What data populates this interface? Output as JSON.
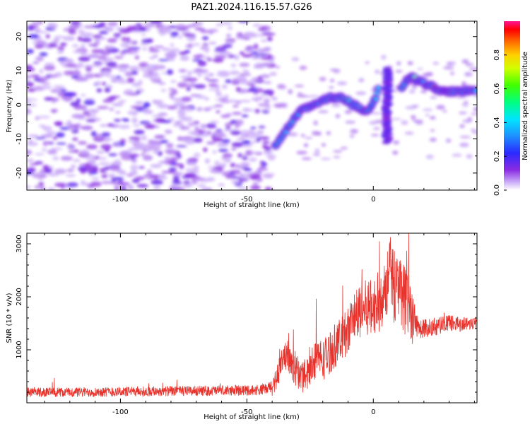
{
  "title": "PAZ1.2024.116.15.57.G26",
  "chart_data": [
    {
      "type": "heatmap",
      "xlabel": "Height of straight line (km)",
      "ylabel": "Frequency (Hz)",
      "xlim": [
        -137,
        41
      ],
      "ylim": [
        -25,
        24.5
      ],
      "xticks": [
        -100,
        -50,
        0
      ],
      "xtick_labels": [
        "-100",
        "-50",
        "0"
      ],
      "yticks": [
        -20,
        -10,
        0,
        10,
        20
      ],
      "ytick_labels": [
        "-20",
        "-10",
        "0",
        "10",
        "20"
      ],
      "noise_region_x": [
        -137,
        -40
      ],
      "ridge": {
        "x": [
          -39,
          -37,
          -35,
          -33,
          -31,
          -29,
          -27,
          -24,
          -21,
          -18,
          -15,
          -12,
          -10,
          -8,
          -5,
          -3,
          -1,
          1,
          2
        ],
        "y": [
          -12,
          -10,
          -8,
          -6,
          -4,
          -2,
          -1,
          0,
          1,
          2,
          2,
          2,
          1,
          0,
          -1,
          -2,
          -1,
          2,
          5
        ]
      },
      "ridge_upper": {
        "x": [
          11,
          13,
          15,
          18,
          21,
          24,
          27,
          30,
          34,
          38,
          41
        ],
        "y": [
          5,
          7,
          8,
          7,
          6,
          5,
          4,
          4,
          4,
          4,
          4
        ]
      },
      "vertical_blob": {
        "x": 5.5,
        "y_range": [
          -11,
          11
        ]
      },
      "colorbar": {
        "label": "Normalized spectral amplitude",
        "range": [
          0,
          1
        ],
        "ticks": [
          0,
          0.2,
          0.4,
          0.6,
          0.8
        ],
        "tick_labels": [
          "0.0",
          "0.2",
          "0.4",
          "0.6",
          "0.8"
        ]
      }
    },
    {
      "type": "line",
      "xlabel": "Height of straight line (km)",
      "ylabel": "SNR (10 * v/v)",
      "xlim": [
        -137,
        41
      ],
      "ylim": [
        0,
        3200
      ],
      "xticks": [
        -100,
        -50,
        0
      ],
      "xtick_labels": [
        "-100",
        "-50",
        "0"
      ],
      "yticks": [
        1000,
        2000,
        3000
      ],
      "ytick_labels": [
        "1000",
        "2000",
        "3000"
      ],
      "color": "#e8322c",
      "envelope": {
        "x": [
          -137,
          -120,
          -100,
          -80,
          -60,
          -45,
          -42,
          -40,
          -38,
          -36,
          -34,
          -32,
          -30,
          -28,
          -25,
          -22,
          -20,
          -18,
          -15,
          -12,
          -10,
          -8,
          -5,
          -3,
          0,
          2,
          4,
          6,
          7,
          8,
          10,
          12,
          14,
          16,
          18,
          20,
          25,
          30,
          35,
          41
        ],
        "y": [
          200,
          200,
          210,
          220,
          230,
          240,
          260,
          300,
          500,
          800,
          900,
          700,
          600,
          500,
          700,
          900,
          800,
          900,
          1100,
          1200,
          1400,
          1600,
          1700,
          1800,
          1800,
          1900,
          2100,
          2300,
          2500,
          2200,
          2300,
          2000,
          1700,
          1500,
          1400,
          1400,
          1450,
          1500,
          1480,
          1520
        ]
      },
      "noise_amplitude": {
        "x": [
          -137,
          -42,
          -38,
          -30,
          -20,
          -10,
          0,
          8,
          14,
          18,
          41
        ],
        "y": [
          90,
          100,
          250,
          350,
          400,
          450,
          550,
          700,
          650,
          200,
          120
        ]
      }
    }
  ]
}
